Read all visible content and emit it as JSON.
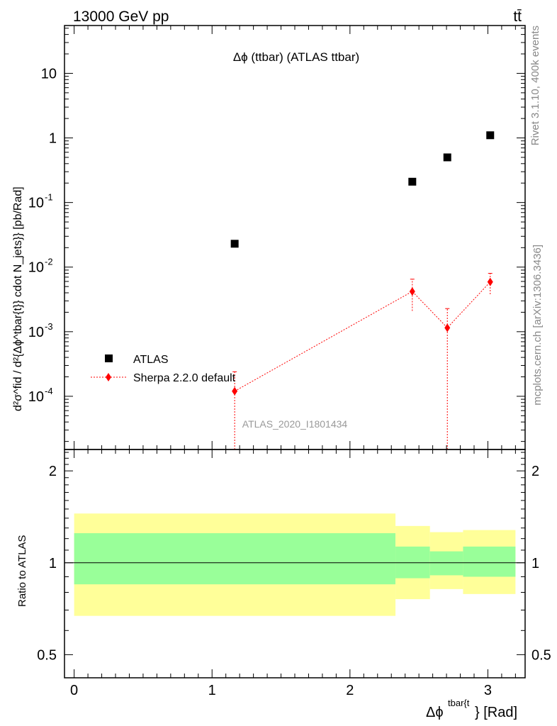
{
  "header": {
    "left": "13000 GeV pp",
    "right": "tt̄"
  },
  "side_labels": {
    "rivet": "Rivet 3.1.10,  400k events",
    "mcplots": "mcplots.cern.ch [arXiv:1306.3436]"
  },
  "main_panel": {
    "title": "Δϕ (ttbar) (ATLAS ttbar)",
    "watermark": "ATLAS_2020_I1801434",
    "ylabel": "d²σ^fid / d²{Δϕ^tbar{t}} cdot N_jets}} [pb/Rad]",
    "yticks": [
      {
        "base": "10",
        "exp": "-4",
        "value": 0.0001
      },
      {
        "base": "10",
        "exp": "-3",
        "value": 0.001
      },
      {
        "base": "10",
        "exp": "-2",
        "value": 0.01
      },
      {
        "base": "10",
        "exp": "-1",
        "value": 0.1
      },
      {
        "base": "1",
        "exp": "",
        "value": 1
      },
      {
        "base": "10",
        "exp": "",
        "value": 10
      }
    ],
    "legend": {
      "atlas": "ATLAS",
      "sherpa": "Sherpa 2.2.0 default"
    }
  },
  "ratio_panel": {
    "ylabel": "Ratio to ATLAS",
    "yticks": [
      "0.5",
      "1",
      "2"
    ]
  },
  "xaxis": {
    "label_main": "Δϕ",
    "label_sup": "tbar{t",
    "label_tail": "} [Rad]",
    "ticks": [
      "0",
      "1",
      "2",
      "3"
    ]
  },
  "colors": {
    "data": "#000000",
    "sherpa": "#ff0000",
    "band_inner": "#99ff99",
    "band_outer": "#ffff99",
    "side_text": "#888888"
  },
  "chart_data": [
    {
      "type": "scatter",
      "panel": "main",
      "yscale": "log",
      "xlim": [
        -0.07,
        3.27
      ],
      "ylim": [
        1.5e-05,
        55
      ],
      "series": [
        {
          "name": "ATLAS",
          "x": [
            1.164,
            2.452,
            2.706,
            3.017
          ],
          "y": [
            0.023,
            0.21,
            0.5,
            1.1
          ]
        },
        {
          "name": "Sherpa 2.2.0 default",
          "x": [
            1.164,
            2.452,
            2.706,
            3.017
          ],
          "y": [
            0.00012,
            0.0042,
            0.00115,
            0.0059
          ],
          "yerr_low": [
            0.00011,
            0.0021,
            0.00114,
            0.0021
          ],
          "yerr_high": [
            0.00012,
            0.0023,
            0.00113,
            0.0021
          ]
        }
      ]
    },
    {
      "type": "area",
      "panel": "ratio",
      "yscale": "log",
      "xlim": [
        -0.07,
        3.27
      ],
      "ylim": [
        0.42,
        2.35
      ],
      "bins": [
        {
          "xlo": 0.0,
          "xhi": 2.33,
          "inner_lo": 0.85,
          "inner_hi": 1.25,
          "outer_lo": 0.67,
          "outer_hi": 1.45
        },
        {
          "xlo": 2.33,
          "xhi": 2.58,
          "inner_lo": 0.89,
          "inner_hi": 1.13,
          "outer_lo": 0.76,
          "outer_hi": 1.32
        },
        {
          "xlo": 2.58,
          "xhi": 2.82,
          "inner_lo": 0.91,
          "inner_hi": 1.09,
          "outer_lo": 0.82,
          "outer_hi": 1.26
        },
        {
          "xlo": 2.82,
          "xhi": 3.2,
          "inner_lo": 0.9,
          "inner_hi": 1.13,
          "outer_lo": 0.79,
          "outer_hi": 1.28
        }
      ],
      "reference_line": 1
    }
  ]
}
